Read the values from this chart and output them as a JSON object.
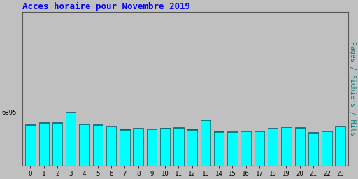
{
  "title": "Acces horaire pour Novembre 2019",
  "title_color": "#0000FF",
  "title_fontsize": 9,
  "background_color": "#C0C0C0",
  "plot_bg_color": "#C0C0C0",
  "ylabel_right": "Pages / Fichiers / Hits",
  "ylabel_right_color": "#008080",
  "ylabel_right_fontsize": 7,
  "categories": [
    0,
    1,
    2,
    3,
    4,
    5,
    6,
    7,
    8,
    9,
    10,
    11,
    12,
    13,
    14,
    15,
    16,
    17,
    18,
    19,
    20,
    21,
    22,
    23
  ],
  "pages_values": [
    5200,
    5500,
    5500,
    6900,
    5300,
    5200,
    5050,
    4650,
    4750,
    4700,
    4800,
    4850,
    4650,
    5850,
    4350,
    4300,
    4450,
    4450,
    4750,
    4950,
    4850,
    4200,
    4450,
    5050
  ],
  "files_values": [
    5250,
    5550,
    5550,
    6920,
    5350,
    5250,
    5100,
    4700,
    4800,
    4750,
    4850,
    4900,
    4700,
    5900,
    4400,
    4350,
    4500,
    4500,
    4800,
    5000,
    4900,
    4250,
    4500,
    5100
  ],
  "hits_values": [
    5300,
    5600,
    5600,
    6960,
    5400,
    5300,
    5150,
    4750,
    4850,
    4800,
    4900,
    4950,
    4750,
    5950,
    4450,
    4400,
    4550,
    4550,
    4850,
    5050,
    4950,
    4300,
    4550,
    5150
  ],
  "bar_width": 0.75,
  "ylim_min": 0,
  "ylim_max": 20000,
  "ytick_value": 6895,
  "pages_color": "#00FFFF",
  "files_color": "#008888",
  "hits_color": "#004488",
  "bar_edge_color": "#006666",
  "grid_color": "#B0B0B0",
  "grid_linewidth": 0.5
}
